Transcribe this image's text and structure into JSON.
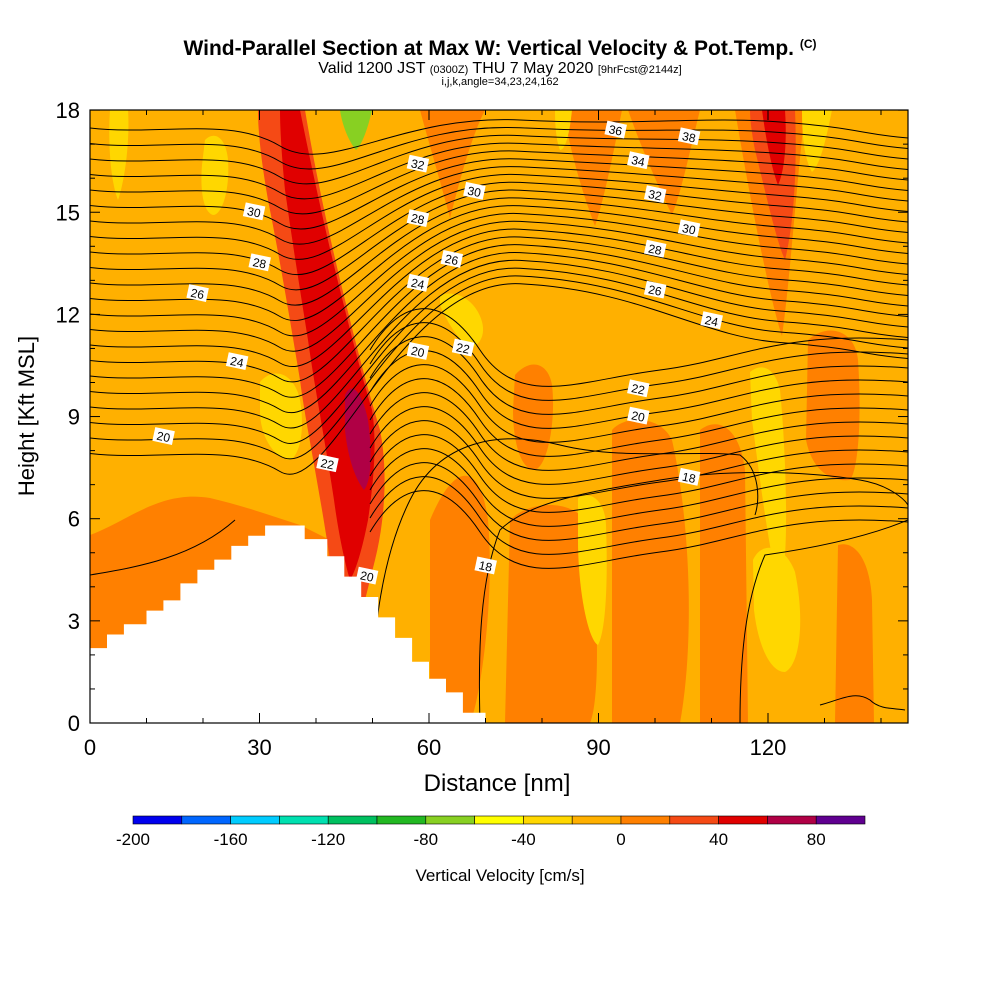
{
  "title": {
    "main": "Wind-Parallel Section at Max W: Vertical Velocity & Pot.Temp.",
    "mark": "(C)"
  },
  "subtitle": {
    "valid": "Valid 1200 JST",
    "utc": "(0300Z)",
    "date": "THU 7 May 2020",
    "fcst": "[9hrFcst@2144z]"
  },
  "params": "i,j,k,angle=34,23,24,162",
  "chart_data": {
    "type": "heatmap",
    "xlabel": "Distance [nm]",
    "ylabel": "Height [Kft MSL]",
    "xlim": [
      0,
      145
    ],
    "ylim": [
      0,
      18
    ],
    "x_ticks": [
      "0",
      "30",
      "60",
      "90",
      "120"
    ],
    "y_ticks": [
      "0",
      "3",
      "6",
      "9",
      "12",
      "15",
      "18"
    ],
    "colorbar": {
      "label": "Vertical Velocity [cm/s]",
      "ticks": [
        "-200",
        "-160",
        "-120",
        "-80",
        "-40",
        "0",
        "40",
        "80"
      ],
      "levels": [
        -200,
        -180,
        -160,
        -140,
        -120,
        -100,
        -80,
        -60,
        -40,
        -20,
        0,
        20,
        40,
        60,
        80,
        100
      ],
      "colors": [
        "#0000ee",
        "#0066ff",
        "#00ccff",
        "#00e0b0",
        "#00c060",
        "#22b822",
        "#88d022",
        "#ffff00",
        "#ffd700",
        "#ffb000",
        "#ff8000",
        "#f54a15",
        "#e00000",
        "#b00045",
        "#600090"
      ]
    },
    "contour_labels": [
      {
        "text": "36",
        "x": 93,
        "y": 17.4
      },
      {
        "text": "38",
        "x": 106,
        "y": 17.2
      },
      {
        "text": "32",
        "x": 58,
        "y": 16.4
      },
      {
        "text": "34",
        "x": 97,
        "y": 16.5
      },
      {
        "text": "30",
        "x": 68,
        "y": 15.6
      },
      {
        "text": "32",
        "x": 100,
        "y": 15.5
      },
      {
        "text": "30",
        "x": 29,
        "y": 15.0
      },
      {
        "text": "28",
        "x": 58,
        "y": 14.8
      },
      {
        "text": "30",
        "x": 106,
        "y": 14.5
      },
      {
        "text": "28",
        "x": 100,
        "y": 13.9
      },
      {
        "text": "26",
        "x": 64,
        "y": 13.6
      },
      {
        "text": "28",
        "x": 30,
        "y": 13.5
      },
      {
        "text": "24",
        "x": 58,
        "y": 12.9
      },
      {
        "text": "26",
        "x": 100,
        "y": 12.7
      },
      {
        "text": "26",
        "x": 19,
        "y": 12.6
      },
      {
        "text": "24",
        "x": 110,
        "y": 11.8
      },
      {
        "text": "22",
        "x": 66,
        "y": 11.0
      },
      {
        "text": "20",
        "x": 58,
        "y": 10.9
      },
      {
        "text": "24",
        "x": 26,
        "y": 10.6
      },
      {
        "text": "22",
        "x": 97,
        "y": 9.8
      },
      {
        "text": "20",
        "x": 97,
        "y": 9.0
      },
      {
        "text": "20",
        "x": 13,
        "y": 8.4
      },
      {
        "text": "22",
        "x": 42,
        "y": 7.6
      },
      {
        "text": "18",
        "x": 106,
        "y": 7.2
      },
      {
        "text": "18",
        "x": 70,
        "y": 4.6
      },
      {
        "text": "20",
        "x": 49,
        "y": 4.3
      }
    ],
    "terrain": [
      [
        0,
        2.2
      ],
      [
        3,
        2.2
      ],
      [
        3,
        2.6
      ],
      [
        6,
        2.6
      ],
      [
        6,
        2.9
      ],
      [
        10,
        2.9
      ],
      [
        10,
        3.3
      ],
      [
        13,
        3.3
      ],
      [
        13,
        3.6
      ],
      [
        16,
        3.6
      ],
      [
        16,
        4.1
      ],
      [
        19,
        4.1
      ],
      [
        19,
        4.5
      ],
      [
        22,
        4.5
      ],
      [
        22,
        4.8
      ],
      [
        25,
        4.8
      ],
      [
        25,
        5.2
      ],
      [
        28,
        5.2
      ],
      [
        28,
        5.5
      ],
      [
        31,
        5.5
      ],
      [
        31,
        5.8
      ],
      [
        38,
        5.8
      ],
      [
        38,
        5.4
      ],
      [
        42,
        5.4
      ],
      [
        42,
        4.9
      ],
      [
        45,
        4.9
      ],
      [
        45,
        4.3
      ],
      [
        48,
        4.3
      ],
      [
        48,
        3.7
      ],
      [
        51,
        3.7
      ],
      [
        51,
        3.1
      ],
      [
        54,
        3.1
      ],
      [
        54,
        2.5
      ],
      [
        57,
        2.5
      ],
      [
        57,
        1.8
      ],
      [
        60,
        1.8
      ],
      [
        60,
        1.3
      ],
      [
        63,
        1.3
      ],
      [
        63,
        0.9
      ],
      [
        66,
        0.9
      ],
      [
        66,
        0.3
      ],
      [
        70,
        0.3
      ],
      [
        70,
        0
      ]
    ]
  }
}
